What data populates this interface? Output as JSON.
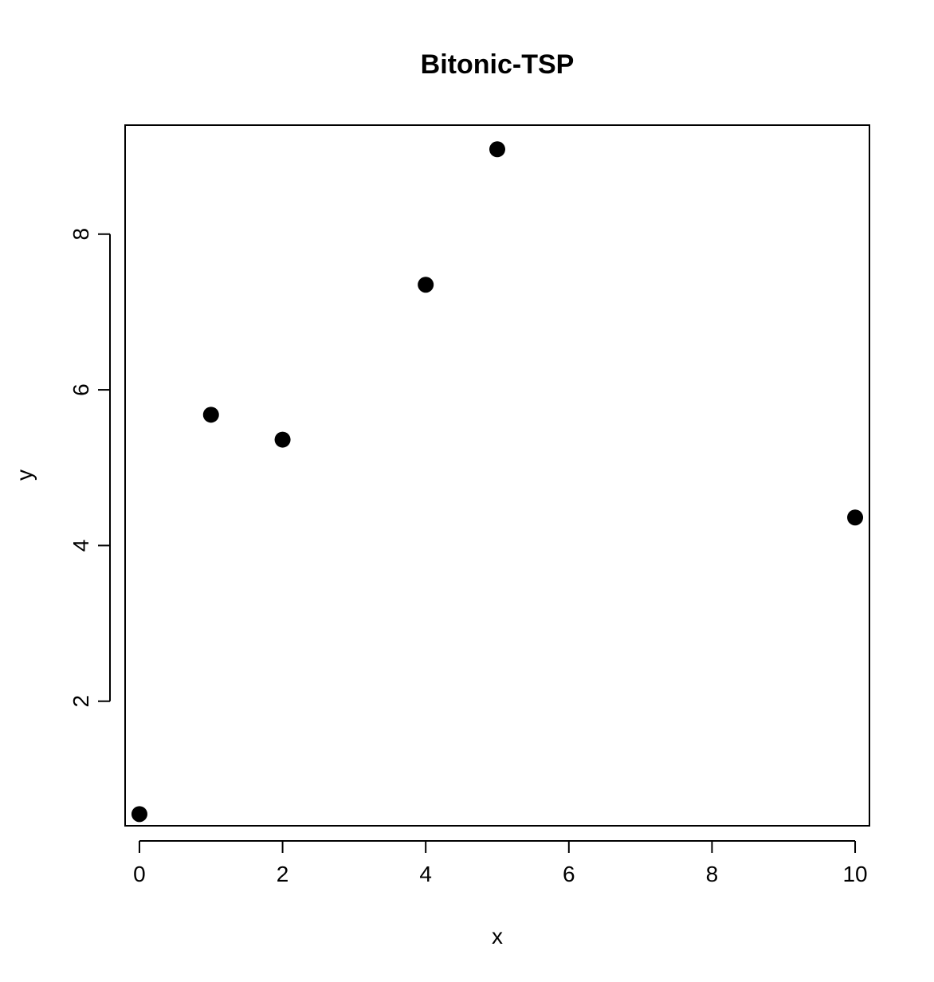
{
  "chart_data": {
    "type": "scatter",
    "title": "Bitonic-TSP",
    "xlabel": "x",
    "ylabel": "y",
    "xlim": [
      -0.2,
      10.2
    ],
    "ylim": [
      0.4,
      9.4
    ],
    "x_ticks": [
      0,
      2,
      4,
      6,
      8,
      10
    ],
    "y_ticks": [
      2,
      4,
      6,
      8
    ],
    "grid": false,
    "legend": "none",
    "marker": "filled-circle",
    "point_color": "#000000",
    "points": [
      {
        "x": 0,
        "y": 0.55
      },
      {
        "x": 1,
        "y": 5.68
      },
      {
        "x": 2,
        "y": 5.36
      },
      {
        "x": 4,
        "y": 7.35
      },
      {
        "x": 5,
        "y": 9.09
      },
      {
        "x": 10,
        "y": 4.36
      }
    ]
  }
}
